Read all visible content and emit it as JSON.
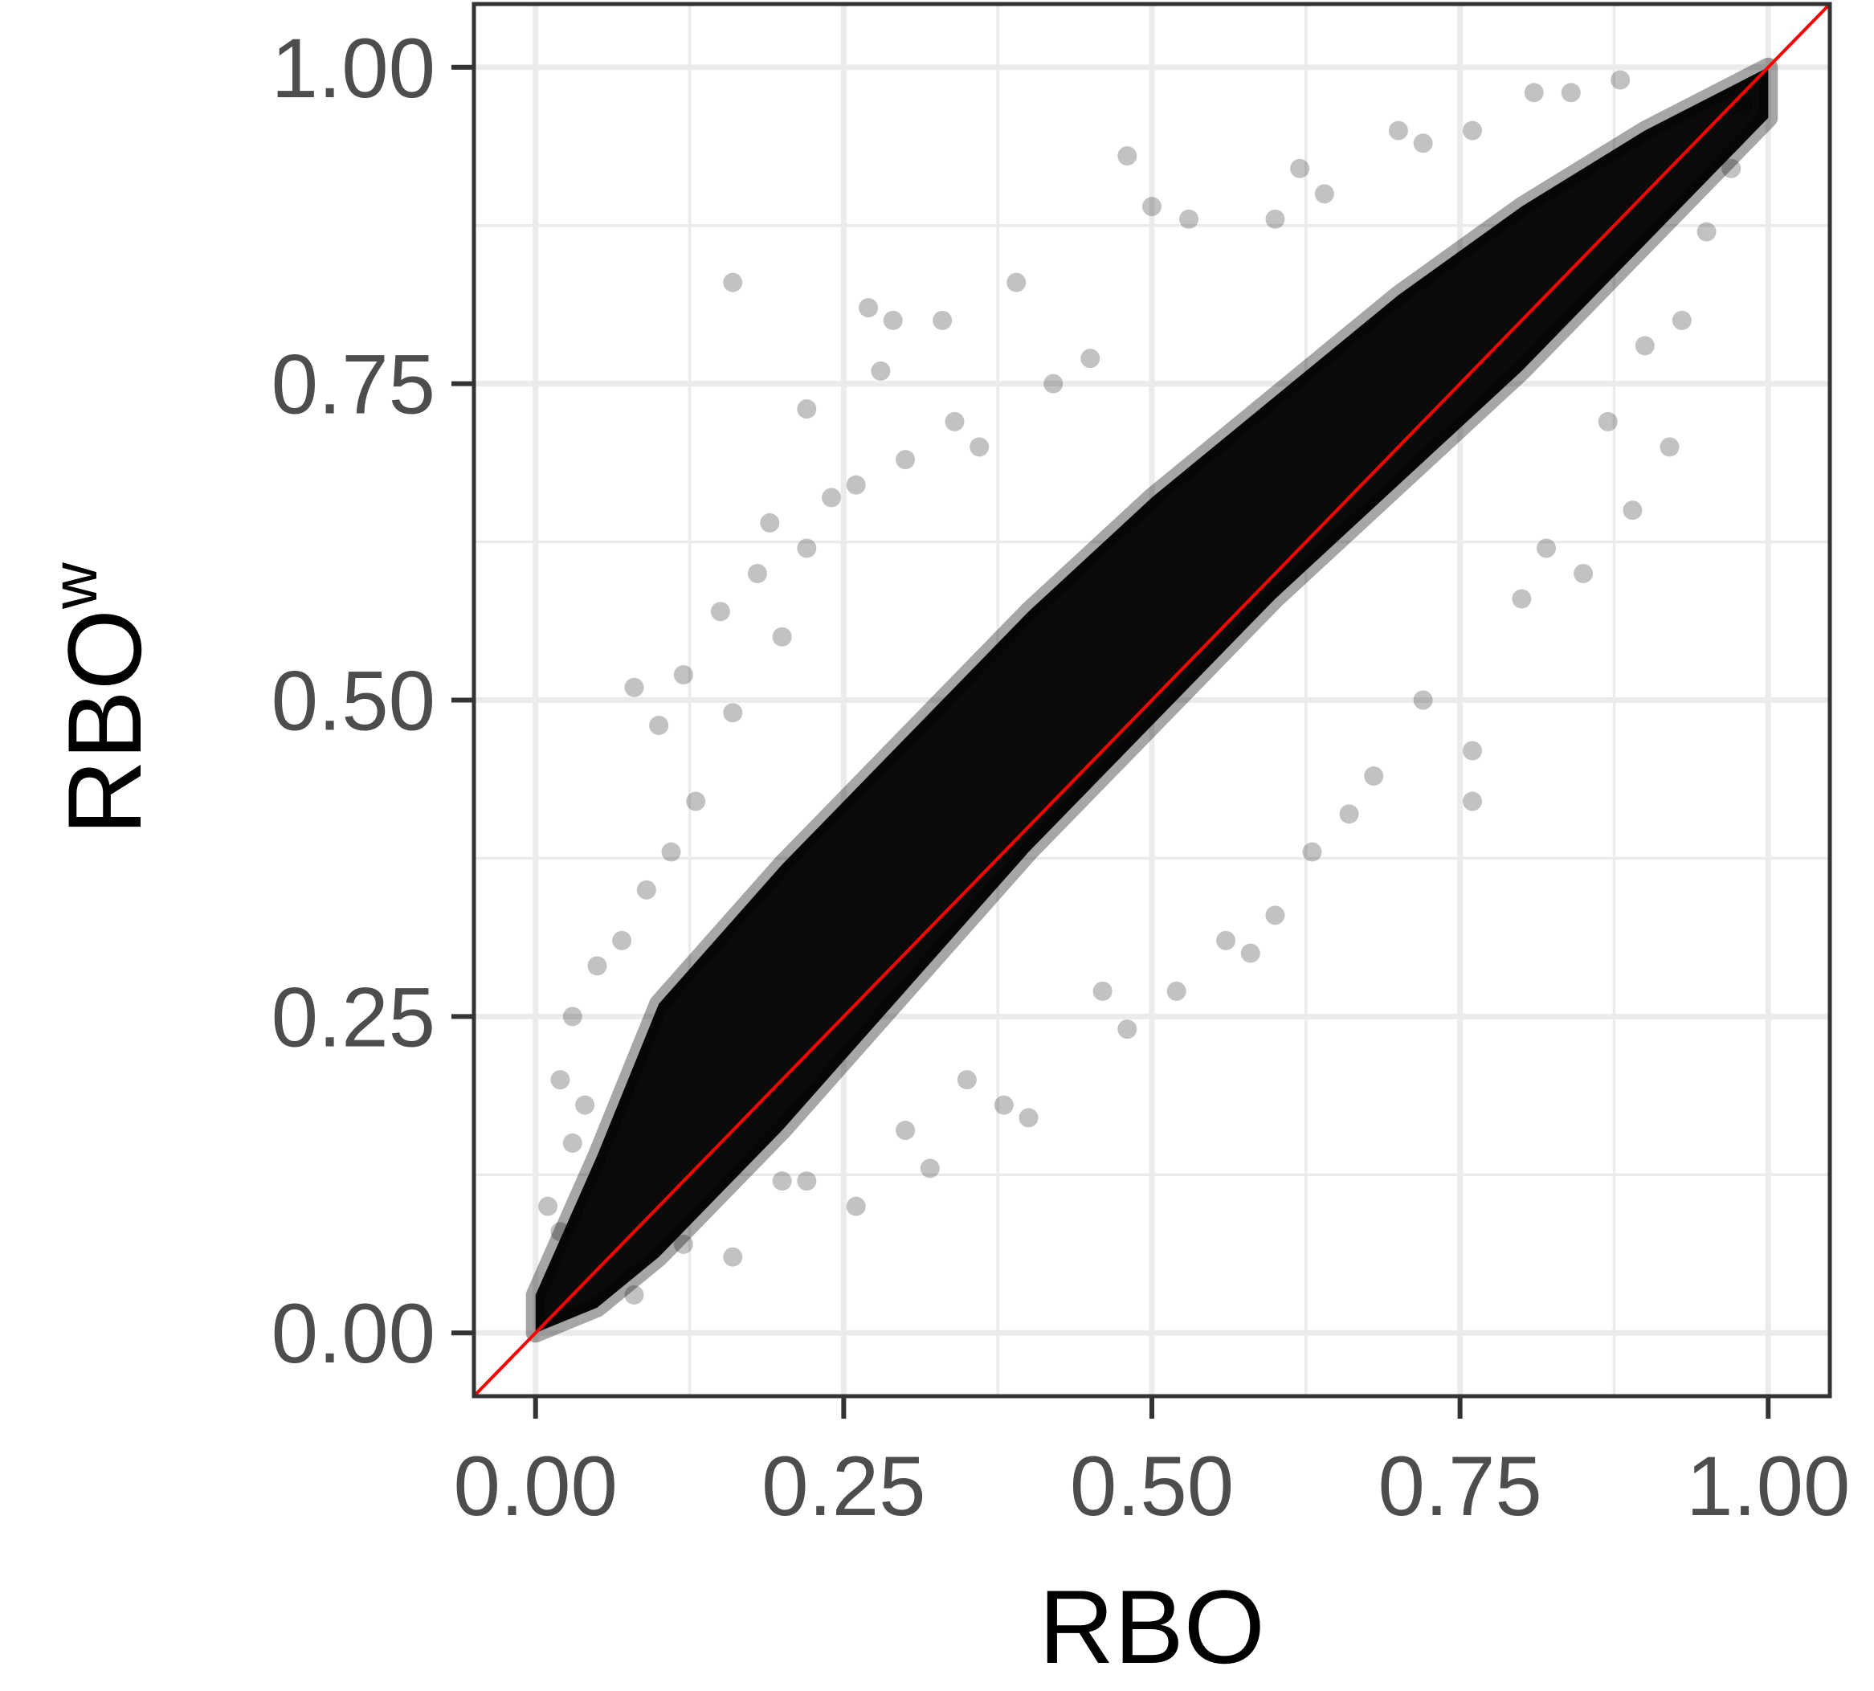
{
  "chart_data": {
    "type": "scatter",
    "title": "",
    "xlabel": "RBO",
    "ylabel": "RBO",
    "ylabel_superscript": "w",
    "xlim": [
      -0.05,
      1.05
    ],
    "ylim": [
      -0.05,
      1.05
    ],
    "x_ticks": [
      0.0,
      0.25,
      0.5,
      0.75,
      1.0
    ],
    "y_ticks": [
      0.0,
      0.25,
      0.5,
      0.75,
      1.0
    ],
    "x_tick_labels": [
      "0.00",
      "0.25",
      "0.50",
      "0.75",
      "1.00"
    ],
    "y_tick_labels": [
      "0.00",
      "0.25",
      "0.50",
      "0.75",
      "1.00"
    ],
    "grid": true,
    "reference_line": {
      "slope": 1,
      "intercept": 0,
      "color": "#ff0000"
    },
    "point_color": "#000000",
    "point_alpha": 0.15,
    "dense_band": {
      "x": [
        0.0,
        0.05,
        0.1,
        0.2,
        0.3,
        0.4,
        0.5,
        0.6,
        0.7,
        0.8,
        0.9,
        1.0
      ],
      "y_lower": [
        0.0,
        0.02,
        0.06,
        0.16,
        0.27,
        0.38,
        0.48,
        0.58,
        0.67,
        0.76,
        0.86,
        0.96
      ],
      "y_upper": [
        0.03,
        0.14,
        0.26,
        0.37,
        0.47,
        0.57,
        0.66,
        0.74,
        0.82,
        0.89,
        0.95,
        1.0
      ]
    },
    "sample_points": [
      {
        "x": 0.16,
        "y": 0.83
      },
      {
        "x": 0.27,
        "y": 0.81
      },
      {
        "x": 0.29,
        "y": 0.8
      },
      {
        "x": 0.22,
        "y": 0.73
      },
      {
        "x": 0.28,
        "y": 0.76
      },
      {
        "x": 0.33,
        "y": 0.8
      },
      {
        "x": 0.39,
        "y": 0.83
      },
      {
        "x": 0.48,
        "y": 0.93
      },
      {
        "x": 0.5,
        "y": 0.89
      },
      {
        "x": 0.53,
        "y": 0.88
      },
      {
        "x": 0.08,
        "y": 0.51
      },
      {
        "x": 0.1,
        "y": 0.48
      },
      {
        "x": 0.12,
        "y": 0.52
      },
      {
        "x": 0.19,
        "y": 0.64
      },
      {
        "x": 0.18,
        "y": 0.6
      },
      {
        "x": 0.15,
        "y": 0.57
      },
      {
        "x": 0.2,
        "y": 0.55
      },
      {
        "x": 0.16,
        "y": 0.49
      },
      {
        "x": 0.24,
        "y": 0.66
      },
      {
        "x": 0.26,
        "y": 0.67
      },
      {
        "x": 0.22,
        "y": 0.62
      },
      {
        "x": 0.05,
        "y": 0.29
      },
      {
        "x": 0.03,
        "y": 0.25
      },
      {
        "x": 0.02,
        "y": 0.2
      },
      {
        "x": 0.04,
        "y": 0.18
      },
      {
        "x": 0.07,
        "y": 0.31
      },
      {
        "x": 0.09,
        "y": 0.35
      },
      {
        "x": 0.13,
        "y": 0.42
      },
      {
        "x": 0.11,
        "y": 0.38
      },
      {
        "x": 0.3,
        "y": 0.69
      },
      {
        "x": 0.34,
        "y": 0.72
      },
      {
        "x": 0.36,
        "y": 0.7
      },
      {
        "x": 0.42,
        "y": 0.75
      },
      {
        "x": 0.45,
        "y": 0.77
      },
      {
        "x": 0.6,
        "y": 0.88
      },
      {
        "x": 0.62,
        "y": 0.92
      },
      {
        "x": 0.64,
        "y": 0.9
      },
      {
        "x": 0.7,
        "y": 0.95
      },
      {
        "x": 0.72,
        "y": 0.94
      },
      {
        "x": 0.76,
        "y": 0.95
      },
      {
        "x": 0.81,
        "y": 0.98
      },
      {
        "x": 0.84,
        "y": 0.98
      },
      {
        "x": 0.88,
        "y": 0.99
      },
      {
        "x": 0.76,
        "y": 0.46
      },
      {
        "x": 0.76,
        "y": 0.42
      },
      {
        "x": 0.85,
        "y": 0.6
      },
      {
        "x": 0.89,
        "y": 0.65
      },
      {
        "x": 0.92,
        "y": 0.7
      },
      {
        "x": 0.72,
        "y": 0.5
      },
      {
        "x": 0.68,
        "y": 0.44
      },
      {
        "x": 0.6,
        "y": 0.33
      },
      {
        "x": 0.56,
        "y": 0.31
      },
      {
        "x": 0.58,
        "y": 0.3
      },
      {
        "x": 0.48,
        "y": 0.24
      },
      {
        "x": 0.4,
        "y": 0.17
      },
      {
        "x": 0.38,
        "y": 0.18
      },
      {
        "x": 0.32,
        "y": 0.13
      },
      {
        "x": 0.26,
        "y": 0.1
      },
      {
        "x": 0.22,
        "y": 0.12
      },
      {
        "x": 0.16,
        "y": 0.06
      },
      {
        "x": 0.12,
        "y": 0.07
      },
      {
        "x": 0.08,
        "y": 0.03
      },
      {
        "x": 0.02,
        "y": 0.08
      },
      {
        "x": 0.01,
        "y": 0.1
      },
      {
        "x": 0.03,
        "y": 0.15
      },
      {
        "x": 0.95,
        "y": 0.87
      },
      {
        "x": 0.97,
        "y": 0.92
      },
      {
        "x": 0.98,
        "y": 0.97
      },
      {
        "x": 0.93,
        "y": 0.8
      },
      {
        "x": 0.9,
        "y": 0.78
      },
      {
        "x": 0.87,
        "y": 0.72
      },
      {
        "x": 0.82,
        "y": 0.62
      },
      {
        "x": 0.8,
        "y": 0.58
      },
      {
        "x": 0.66,
        "y": 0.41
      },
      {
        "x": 0.63,
        "y": 0.38
      },
      {
        "x": 0.52,
        "y": 0.27
      },
      {
        "x": 0.46,
        "y": 0.27
      },
      {
        "x": 0.35,
        "y": 0.2
      },
      {
        "x": 0.3,
        "y": 0.16
      },
      {
        "x": 0.2,
        "y": 0.12
      }
    ]
  }
}
